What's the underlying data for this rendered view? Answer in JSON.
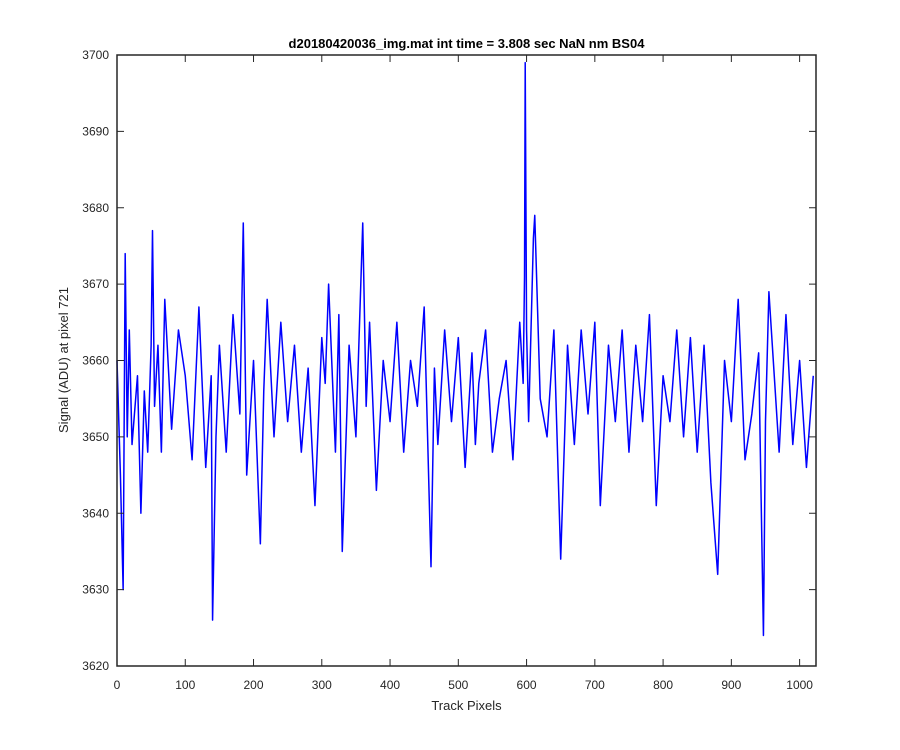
{
  "chart_data": {
    "type": "line",
    "title": "d20180420036_img.mat int time = 3.808 sec  NaN nm BS04",
    "xlabel": "Track Pixels",
    "ylabel": "Signal (ADU) at pixel 721",
    "xlim": [
      0,
      1024
    ],
    "ylim": [
      3620,
      3700
    ],
    "xticks": [
      0,
      100,
      200,
      300,
      400,
      500,
      600,
      700,
      800,
      900,
      1000
    ],
    "yticks": [
      3620,
      3630,
      3640,
      3650,
      3660,
      3670,
      3680,
      3690,
      3700
    ],
    "grid": false,
    "series": [
      {
        "color": "#0000ff",
        "x": [
          0,
          5,
          9,
          12,
          15,
          18,
          22,
          30,
          35,
          40,
          45,
          50,
          52,
          55,
          60,
          65,
          70,
          80,
          90,
          100,
          110,
          120,
          130,
          138,
          140,
          145,
          150,
          160,
          170,
          180,
          185,
          190,
          200,
          210,
          215,
          220,
          230,
          240,
          250,
          260,
          270,
          280,
          290,
          300,
          305,
          310,
          320,
          325,
          330,
          340,
          350,
          360,
          365,
          370,
          380,
          390,
          400,
          410,
          420,
          430,
          440,
          450,
          460,
          465,
          470,
          480,
          490,
          500,
          510,
          520,
          525,
          530,
          540,
          550,
          560,
          570,
          580,
          590,
          595,
          597,
          598,
          600,
          603,
          610,
          612,
          620,
          630,
          640,
          650,
          660,
          670,
          680,
          690,
          700,
          708,
          720,
          730,
          740,
          750,
          760,
          770,
          780,
          790,
          800,
          810,
          820,
          830,
          840,
          850,
          860,
          870,
          880,
          890,
          900,
          910,
          920,
          930,
          940,
          947,
          950,
          955,
          960,
          970,
          980,
          990,
          1000,
          1010,
          1020
        ],
        "y": [
          3660,
          3645,
          3630,
          3674,
          3650,
          3664,
          3649,
          3658,
          3640,
          3656,
          3648,
          3662,
          3677,
          3654,
          3662,
          3648,
          3668,
          3651,
          3664,
          3658,
          3647,
          3667,
          3646,
          3658,
          3626,
          3650,
          3662,
          3648,
          3666,
          3653,
          3678,
          3645,
          3660,
          3636,
          3656,
          3668,
          3650,
          3665,
          3652,
          3662,
          3648,
          3659,
          3641,
          3663,
          3657,
          3670,
          3648,
          3666,
          3635,
          3662,
          3650,
          3678,
          3654,
          3665,
          3643,
          3660,
          3652,
          3665,
          3648,
          3660,
          3654,
          3667,
          3633,
          3659,
          3649,
          3664,
          3652,
          3663,
          3646,
          3661,
          3649,
          3657,
          3664,
          3648,
          3655,
          3660,
          3647,
          3665,
          3657,
          3671,
          3699,
          3664,
          3652,
          3676,
          3679,
          3655,
          3650,
          3664,
          3634,
          3662,
          3649,
          3664,
          3653,
          3665,
          3641,
          3662,
          3652,
          3664,
          3648,
          3662,
          3652,
          3666,
          3641,
          3658,
          3652,
          3664,
          3650,
          3663,
          3648,
          3662,
          3644,
          3632,
          3660,
          3652,
          3668,
          3647,
          3653,
          3661,
          3624,
          3652,
          3669,
          3662,
          3648,
          3666,
          3649,
          3660,
          3646,
          3658
        ]
      }
    ]
  }
}
